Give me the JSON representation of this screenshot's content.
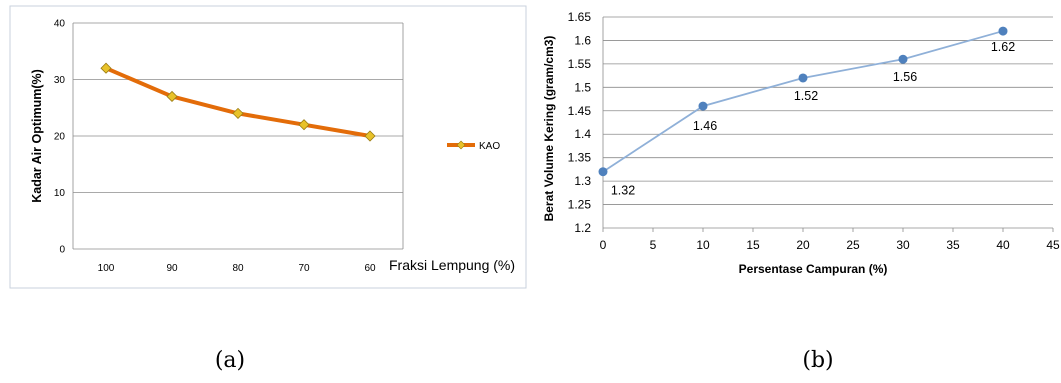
{
  "chart_data": [
    {
      "type": "line",
      "categories": [
        "100",
        "90",
        "80",
        "70",
        "60"
      ],
      "series": [
        {
          "name": "KAO",
          "values": [
            32,
            27,
            24,
            22,
            20
          ],
          "color": "#e36c09",
          "marker_color": "#e8c22a"
        }
      ],
      "xlabel": "Fraksi Lempung (%)",
      "ylabel": "Kadar Air Optimum(%)",
      "ylim": [
        0,
        40
      ],
      "yticks": [
        0,
        10,
        20,
        30,
        40
      ],
      "grid": true,
      "legend": "right"
    },
    {
      "type": "line",
      "x": [
        0,
        10,
        20,
        30,
        40
      ],
      "y": [
        1.32,
        1.46,
        1.52,
        1.56,
        1.62
      ],
      "data_labels": [
        "1.32",
        "1.46",
        "1.52",
        "1.56",
        "1.62"
      ],
      "xlabel": "Persentase Campuran (%)",
      "ylabel": "Berat Volume Kering (gram/cm3)",
      "xlim": [
        0,
        45
      ],
      "xticks": [
        0,
        5,
        10,
        15,
        20,
        25,
        30,
        35,
        40,
        45
      ],
      "ylim": [
        1.2,
        1.65
      ],
      "yticks": [
        1.2,
        1.25,
        1.3,
        1.35,
        1.4,
        1.45,
        1.5,
        1.55,
        1.6,
        1.65
      ],
      "color": "#8fb0d8",
      "marker_color": "#4f81bd",
      "grid": true
    }
  ],
  "captions": {
    "a": "(a)",
    "b": "(b)"
  }
}
